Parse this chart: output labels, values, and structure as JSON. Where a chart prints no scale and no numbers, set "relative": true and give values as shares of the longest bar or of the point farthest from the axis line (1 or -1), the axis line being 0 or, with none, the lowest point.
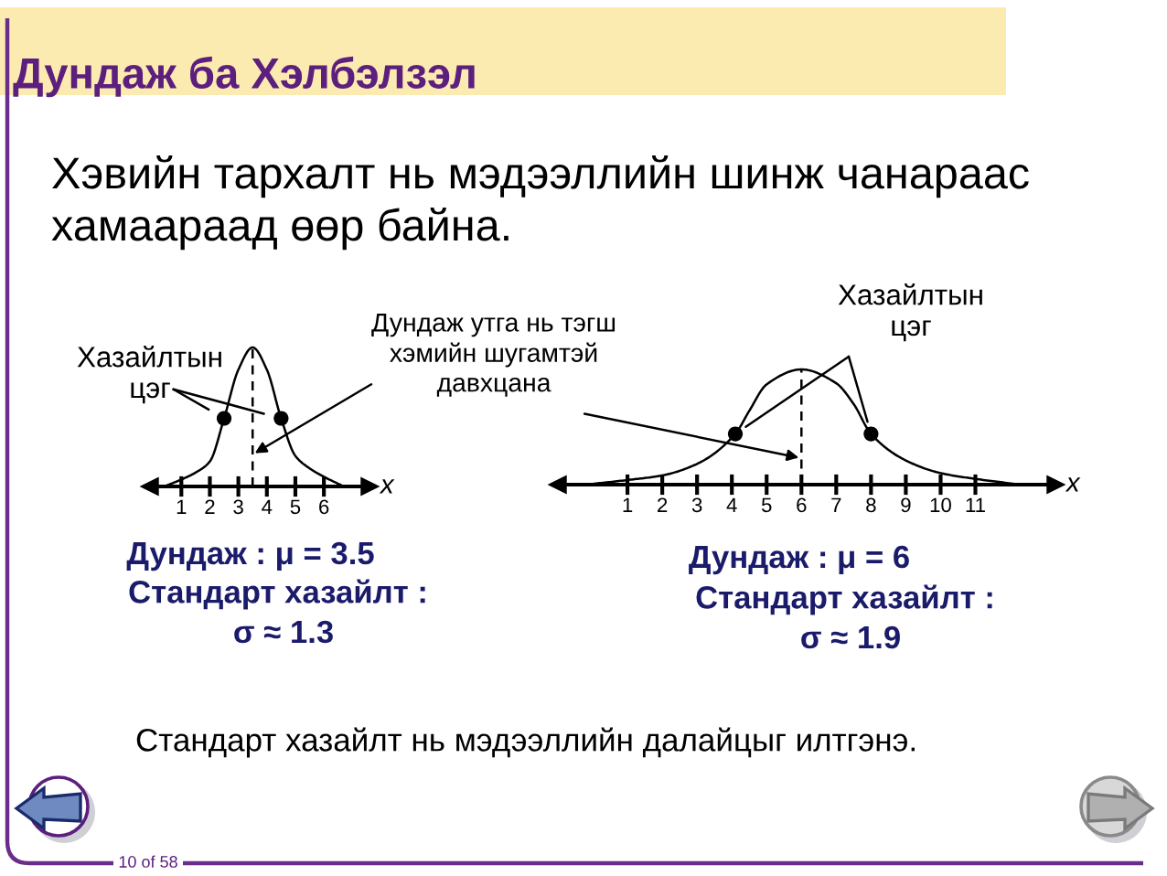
{
  "chart_data": [
    {
      "type": "other",
      "title": "Дундаж ба Хэлбэлзэл",
      "subtitle": "Хэвийн тархалт нь мэдээллийн шинж чанараас\nхамаараад өөр байна.",
      "annotations": [
        "Стандарт хазайлт нь мэдээллийн далайцыг илтгэнэ.",
        "10 of 58"
      ]
    },
    {
      "type": "line",
      "relative": true,
      "xlabel": "x",
      "xlim": [
        -0.1,
        7.6
      ],
      "xticks": [
        1,
        2,
        3,
        4,
        5,
        6
      ],
      "series": [
        {
          "color": "#000000",
          "x": [
            0.4,
            1,
            1.5,
            2,
            2.5,
            3,
            3.5,
            4,
            4.5,
            5,
            5.5,
            6,
            6.7
          ],
          "values": [
            0,
            0.05,
            0.1,
            0.18,
            0.49,
            0.84,
            1,
            0.84,
            0.49,
            0.22,
            0.13,
            0.07,
            0
          ]
        },
        {
          "type": "scatter",
          "marker": "circle",
          "color": "#000000",
          "x": [
            2.5,
            4.5
          ],
          "values": [
            0.49,
            0.49
          ]
        }
      ],
      "ref_lines": [
        {
          "axis": "x",
          "value": 3.5,
          "line_style": "dashed",
          "color": "#000000"
        }
      ],
      "annotations": [
        {
          "text": "Хазайлтын\nцэг",
          "x": 2.5,
          "y": 0.49
        },
        {
          "text": "Дундаж утга нь тэгш\nхэмийн шугамтэй\nдавхцана",
          "x": 3.5,
          "y": 0.23
        },
        "Дундаж : μ = 3.5",
        "Стандарт хазайлт :",
        "σ ≈ 1.3"
      ]
    },
    {
      "type": "line",
      "relative": true,
      "xlabel": "x",
      "xlim": [
        -1,
        13.3
      ],
      "xticks": [
        1,
        2,
        3,
        4,
        5,
        6,
        7,
        8,
        9,
        10,
        11
      ],
      "series": [
        {
          "color": "#000000",
          "x": [
            -0.2,
            1,
            2,
            3,
            4.1,
            4.5,
            5,
            6,
            7,
            7.5,
            8,
            9,
            10,
            11,
            12.3
          ],
          "values": [
            0,
            0.04,
            0.08,
            0.18,
            0.44,
            0.64,
            0.87,
            1,
            0.88,
            0.7,
            0.44,
            0.21,
            0.1,
            0.05,
            0
          ]
        },
        {
          "type": "scatter",
          "marker": "circle",
          "color": "#000000",
          "x": [
            4.1,
            8
          ],
          "values": [
            0.44,
            0.44
          ]
        }
      ],
      "ref_lines": [
        {
          "axis": "x",
          "value": 6,
          "line_style": "dashed",
          "color": "#000000"
        }
      ],
      "annotations": [
        {
          "text": "Хазайлтын\nцэг",
          "x": 4.1,
          "y": 0.44
        },
        "Дундаж : μ = 6",
        "Стандарт хазайлт :",
        "σ ≈ 1.9"
      ]
    }
  ]
}
